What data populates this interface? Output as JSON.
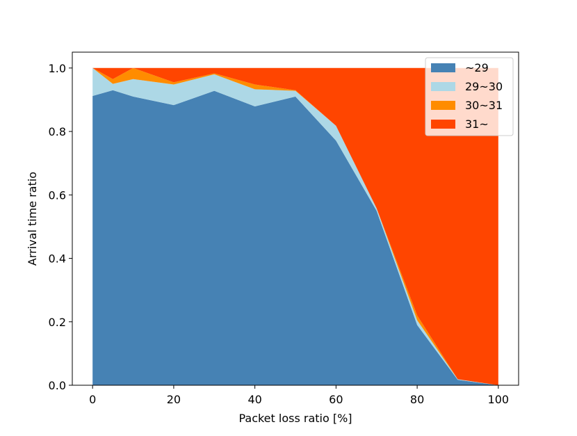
{
  "chart_data": {
    "type": "area",
    "stacked": true,
    "title": "",
    "xlabel": "Packet loss ratio [%]",
    "ylabel": "Arrival time ratio",
    "xlim": [
      -5,
      105
    ],
    "ylim": [
      0,
      1.05
    ],
    "xticks": [
      0,
      20,
      40,
      60,
      80,
      100
    ],
    "xtick_labels": [
      "0",
      "20",
      "40",
      "60",
      "80",
      "100"
    ],
    "yticks": [
      0.0,
      0.2,
      0.4,
      0.6,
      0.8,
      1.0
    ],
    "ytick_labels": [
      "0.0",
      "0.2",
      "0.4",
      "0.6",
      "0.8",
      "1.0"
    ],
    "grid": false,
    "legend_position": "top-right",
    "x": [
      0,
      5,
      10,
      20,
      30,
      40,
      50,
      60,
      70,
      80,
      90,
      100
    ],
    "series": [
      {
        "name": "~29",
        "color": "#4682b4",
        "values": [
          0.912,
          0.93,
          0.91,
          0.883,
          0.928,
          0.879,
          0.91,
          0.771,
          0.55,
          0.19,
          0.017,
          0.0
        ]
      },
      {
        "name": "29~30",
        "color": "#add8e6",
        "values": [
          0.088,
          0.02,
          0.055,
          0.065,
          0.052,
          0.054,
          0.018,
          0.047,
          0.008,
          0.015,
          0.002,
          0.0
        ]
      },
      {
        "name": "30~31",
        "color": "#ff8c00",
        "values": [
          0.0,
          0.015,
          0.035,
          0.007,
          0.003,
          0.015,
          0.002,
          0.0,
          0.0,
          0.015,
          0.0,
          0.0
        ]
      },
      {
        "name": "31~",
        "color": "#ff4500",
        "values": [
          0.0,
          0.035,
          0.0,
          0.045,
          0.017,
          0.052,
          0.07,
          0.182,
          0.442,
          0.78,
          0.981,
          1.0
        ]
      }
    ]
  }
}
